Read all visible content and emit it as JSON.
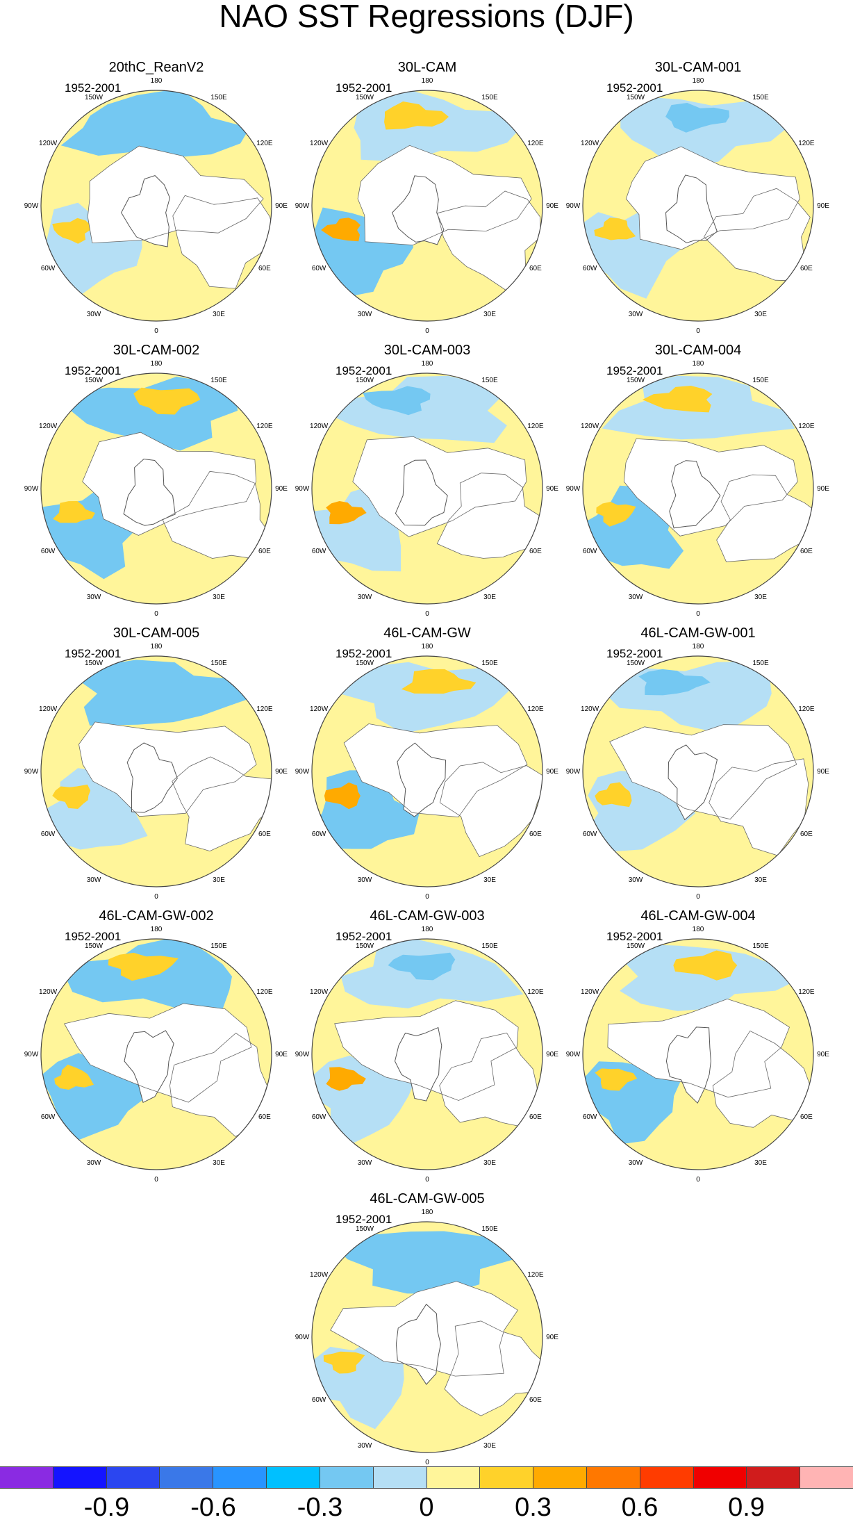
{
  "title": "NAO SST Regressions (DJF)",
  "period_label": "1952-2001",
  "map_labels": {
    "top": "180",
    "bottom": "0",
    "w150": "150W",
    "e150": "150E",
    "w120": "120W",
    "e120": "120E",
    "w90": "90W",
    "e90": "90E",
    "w60": "60W",
    "e60": "60E",
    "w30": "30W",
    "e30": "30E"
  },
  "chart_data": {
    "type": "heatmap",
    "projection": "polar-stereographic (north)",
    "panels": [
      {
        "name": "20thC_ReanV2",
        "period": "1952-2001"
      },
      {
        "name": "30L-CAM",
        "period": "1952-2001"
      },
      {
        "name": "30L-CAM-001",
        "period": "1952-2001"
      },
      {
        "name": "30L-CAM-002",
        "period": "1952-2001"
      },
      {
        "name": "30L-CAM-003",
        "period": "1952-2001"
      },
      {
        "name": "30L-CAM-004",
        "period": "1952-2001"
      },
      {
        "name": "30L-CAM-005",
        "period": "1952-2001"
      },
      {
        "name": "46L-CAM-GW",
        "period": "1952-2001"
      },
      {
        "name": "46L-CAM-GW-001",
        "period": "1952-2001"
      },
      {
        "name": "46L-CAM-GW-002",
        "period": "1952-2001"
      },
      {
        "name": "46L-CAM-GW-003",
        "period": "1952-2001"
      },
      {
        "name": "46L-CAM-GW-004",
        "period": "1952-2001"
      },
      {
        "name": "46L-CAM-GW-005",
        "period": "1952-2001"
      }
    ],
    "colorbar": {
      "colors": [
        "#8a2be2",
        "#1414ff",
        "#2b46f0",
        "#3a78e8",
        "#2894ff",
        "#00c0ff",
        "#74c8f2",
        "#b5dff5",
        "#fff59a",
        "#ffd22a",
        "#ffaa00",
        "#ff7800",
        "#ff3c00",
        "#f00000",
        "#d01c1c",
        "#ffb4b4"
      ],
      "levels": [
        -1.05,
        -0.9,
        -0.75,
        -0.6,
        -0.45,
        -0.3,
        -0.15,
        0,
        0.15,
        0.3,
        0.45,
        0.6,
        0.75,
        0.9,
        1.05
      ],
      "tick_labels": [
        "-0.9",
        "-0.6",
        "-0.3",
        "0",
        "0.3",
        "0.6",
        "0.9"
      ],
      "tick_values": [
        -0.9,
        -0.6,
        -0.3,
        0,
        0.3,
        0.6,
        0.9
      ]
    }
  }
}
